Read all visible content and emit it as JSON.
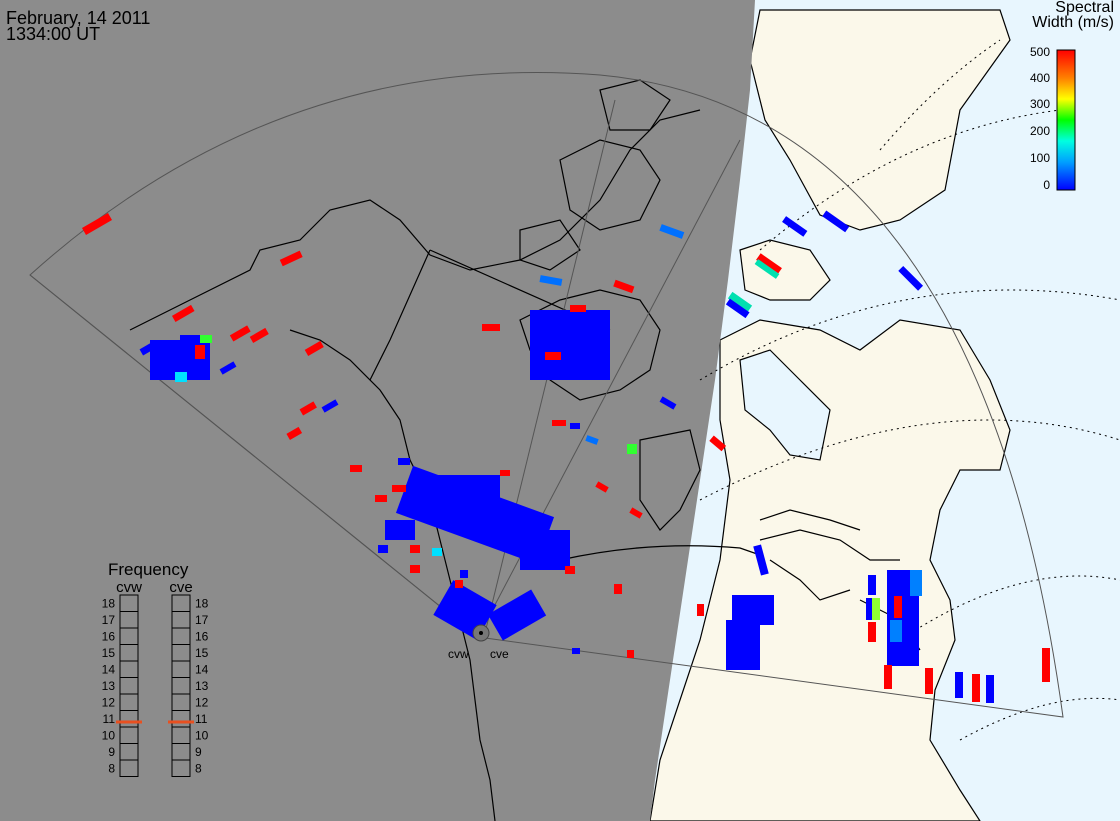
{
  "header": {
    "date": "February, 14 2011",
    "time": "1334:00 UT"
  },
  "colorbar": {
    "title_line1": "Spectral",
    "title_line2": "Width (m/s)",
    "ticks": [
      "500",
      "400",
      "300",
      "200",
      "100",
      "0"
    ],
    "range": [
      0,
      500
    ],
    "colors": [
      "#0000ff",
      "#00a0ff",
      "#00ffe0",
      "#00ff00",
      "#ffff00",
      "#ff8000",
      "#ff0000"
    ]
  },
  "frequency": {
    "title": "Frequency",
    "radars": [
      {
        "name": "cvw",
        "value": 10.8
      },
      {
        "name": "cve",
        "value": 10.8
      }
    ],
    "scale": [
      "18",
      "17",
      "16",
      "15",
      "14",
      "13",
      "12",
      "11",
      "10",
      "9",
      "8"
    ],
    "range": [
      8,
      18
    ]
  },
  "radars": [
    {
      "label": "cvw"
    },
    {
      "label": "cve"
    }
  ],
  "colors": {
    "night": "#8c8c8c",
    "land_day": "#fbf8ea",
    "ocean_day": "#e8f6fe",
    "low_width": "#0000ff",
    "high_width": "#ff0000"
  }
}
